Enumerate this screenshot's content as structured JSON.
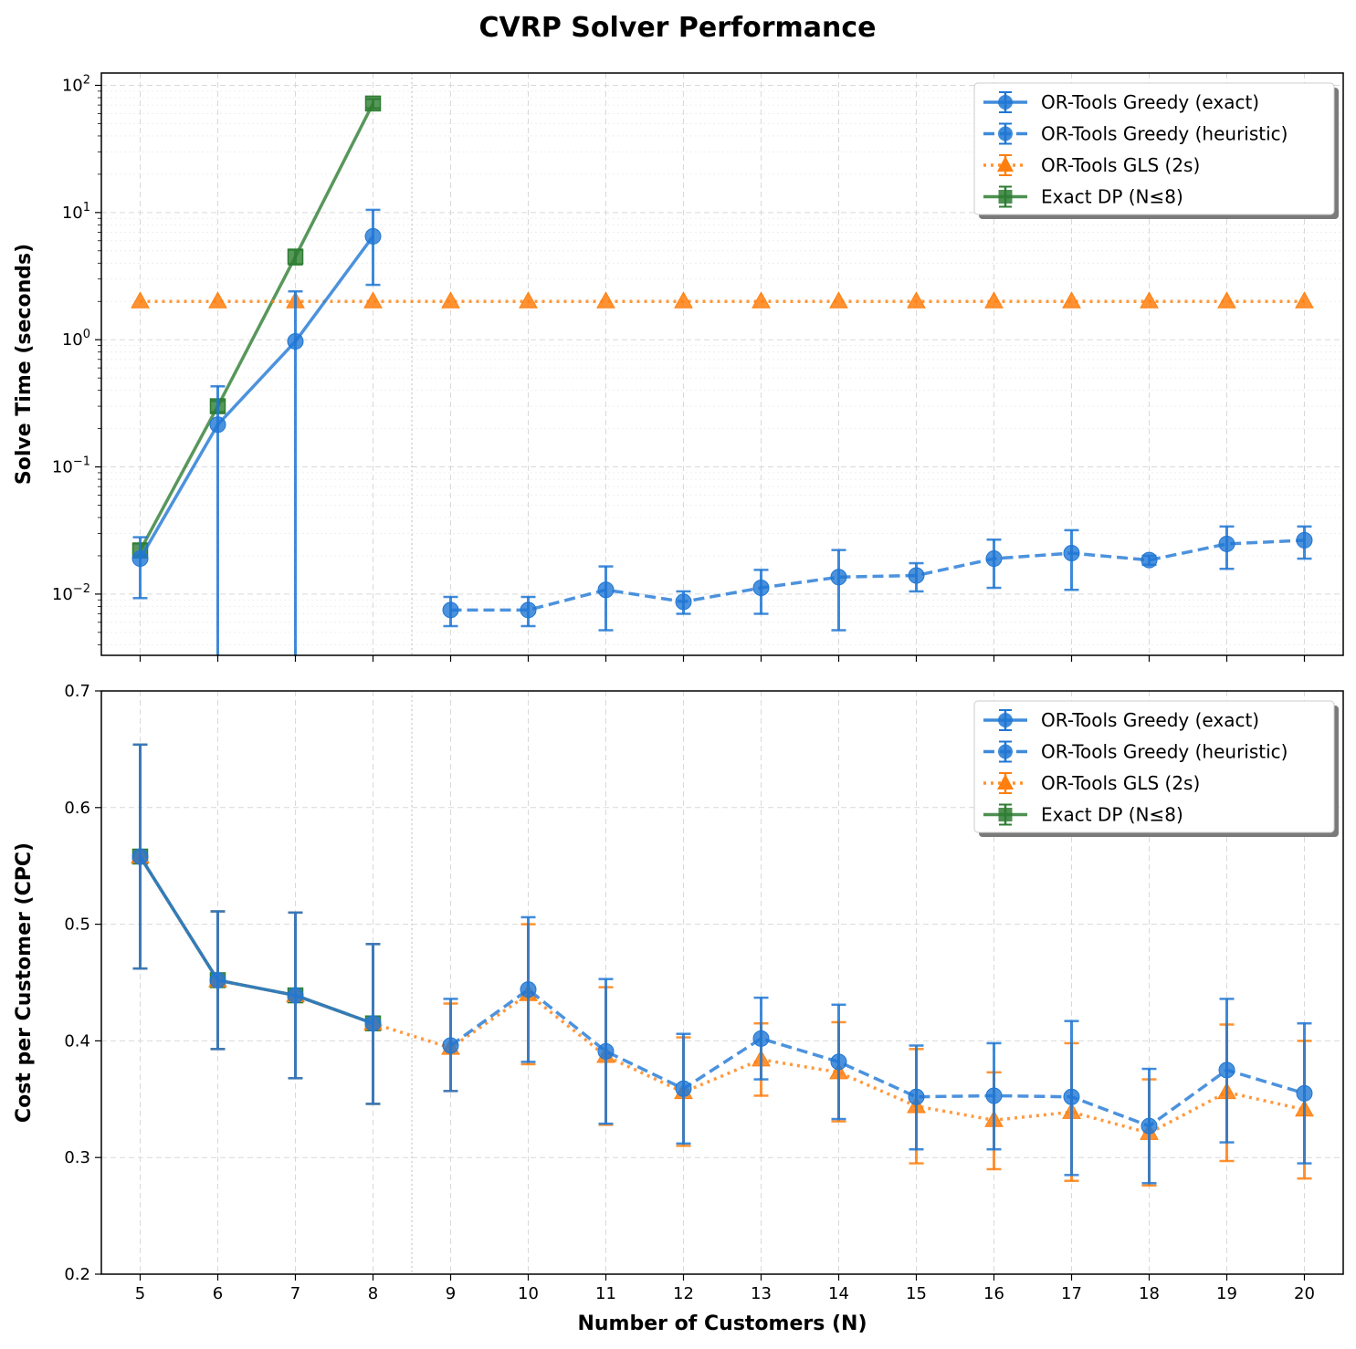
{
  "figure_title": "CVRP Solver Performance",
  "colors": {
    "greedy": "#1f77d4",
    "gls": "#ff7f0e",
    "dp": "#2e7d32"
  },
  "chart_data": [
    {
      "type": "line",
      "panel": "top",
      "xlabel": "",
      "ylabel": "Solve Time (seconds)",
      "yscale": "log",
      "ylim": [
        0.0033,
        125
      ],
      "yticks": [
        {
          "value": 0.01,
          "base": "10",
          "exp": "−2"
        },
        {
          "value": 0.1,
          "base": "10",
          "exp": "−1"
        },
        {
          "value": 1,
          "base": "10",
          "exp": "0"
        },
        {
          "value": 10,
          "base": "10",
          "exp": "1"
        },
        {
          "value": 100,
          "base": "10",
          "exp": "2"
        }
      ],
      "x": [
        5,
        6,
        7,
        8,
        9,
        10,
        11,
        12,
        13,
        14,
        15,
        16,
        17,
        18,
        19,
        20
      ],
      "grid": true,
      "legend_position": "top-right",
      "series": [
        {
          "name": "OR-Tools Greedy (exact)",
          "color_key": "greedy",
          "marker": "circle",
          "line": "solid",
          "x": [
            5,
            6,
            7,
            8
          ],
          "y": [
            0.019,
            0.215,
            0.97,
            6.5
          ],
          "err_low": [
            0.0093,
            0.0001,
            0.0001,
            2.7
          ],
          "err_high": [
            0.028,
            0.43,
            2.4,
            10.5
          ]
        },
        {
          "name": "OR-Tools Greedy (heuristic)",
          "color_key": "greedy",
          "marker": "circle",
          "line": "dashed",
          "x": [
            9,
            10,
            11,
            12,
            13,
            14,
            15,
            16,
            17,
            18,
            19,
            20
          ],
          "y": [
            0.0075,
            0.0075,
            0.0108,
            0.0087,
            0.0112,
            0.0136,
            0.014,
            0.019,
            0.021,
            0.0185,
            0.0248,
            0.0265
          ],
          "err_low": [
            0.0056,
            0.0056,
            0.0052,
            0.007,
            0.007,
            0.0052,
            0.0105,
            0.0112,
            0.0108,
            0.017,
            0.0158,
            0.019
          ],
          "err_high": [
            0.0095,
            0.0095,
            0.0165,
            0.0105,
            0.0155,
            0.0222,
            0.0175,
            0.0268,
            0.0318,
            0.02,
            0.034,
            0.034
          ]
        },
        {
          "name": "OR-Tools GLS (2s)",
          "color_key": "gls",
          "marker": "triangle",
          "line": "dotted",
          "x": [
            5,
            6,
            7,
            8,
            9,
            10,
            11,
            12,
            13,
            14,
            15,
            16,
            17,
            18,
            19,
            20
          ],
          "y": [
            2,
            2,
            2,
            2,
            2,
            2,
            2,
            2,
            2,
            2,
            2,
            2,
            2,
            2,
            2,
            2
          ]
        },
        {
          "name": "Exact DP (N≤8)",
          "color_key": "dp",
          "marker": "square",
          "line": "solid",
          "x": [
            5,
            6,
            7,
            8
          ],
          "y": [
            0.022,
            0.3,
            4.5,
            72
          ],
          "err_low": [
            0.02,
            0.27,
            3.9,
            66
          ],
          "err_high": [
            0.025,
            0.33,
            5.1,
            78
          ]
        }
      ]
    },
    {
      "type": "line",
      "panel": "bottom",
      "xlabel": "Number of Customers (N)",
      "ylabel": "Cost per Customer (CPC)",
      "yscale": "linear",
      "ylim": [
        0.2,
        0.7
      ],
      "yticks": [
        {
          "value": 0.2,
          "label": "0.2"
        },
        {
          "value": 0.3,
          "label": "0.3"
        },
        {
          "value": 0.4,
          "label": "0.4"
        },
        {
          "value": 0.5,
          "label": "0.5"
        },
        {
          "value": 0.6,
          "label": "0.6"
        },
        {
          "value": 0.7,
          "label": "0.7"
        }
      ],
      "x": [
        5,
        6,
        7,
        8,
        9,
        10,
        11,
        12,
        13,
        14,
        15,
        16,
        17,
        18,
        19,
        20
      ],
      "xtick_labels": [
        "5",
        "6",
        "7",
        "8",
        "9",
        "10",
        "11",
        "12",
        "13",
        "14",
        "15",
        "16",
        "17",
        "18",
        "19",
        "20"
      ],
      "grid": true,
      "legend_position": "top-right",
      "series": [
        {
          "name": "OR-Tools Greedy (exact)",
          "color_key": "greedy",
          "marker": "circle",
          "line": "solid",
          "x": [
            5,
            6,
            7,
            8
          ],
          "y": [
            0.558,
            0.452,
            0.439,
            0.415
          ],
          "err_low": [
            0.462,
            0.393,
            0.368,
            0.346
          ],
          "err_high": [
            0.654,
            0.511,
            0.51,
            0.483
          ]
        },
        {
          "name": "OR-Tools Greedy (heuristic)",
          "color_key": "greedy",
          "marker": "circle",
          "line": "dashed",
          "x": [
            9,
            10,
            11,
            12,
            13,
            14,
            15,
            16,
            17,
            18,
            19,
            20
          ],
          "y": [
            0.396,
            0.444,
            0.391,
            0.359,
            0.402,
            0.382,
            0.352,
            0.353,
            0.352,
            0.327,
            0.375,
            0.355
          ],
          "err_low": [
            0.357,
            0.382,
            0.329,
            0.312,
            0.367,
            0.333,
            0.307,
            0.307,
            0.285,
            0.278,
            0.313,
            0.295
          ],
          "err_high": [
            0.436,
            0.506,
            0.453,
            0.406,
            0.437,
            0.431,
            0.396,
            0.398,
            0.417,
            0.376,
            0.436,
            0.415
          ]
        },
        {
          "name": "OR-Tools GLS (2s)",
          "color_key": "gls",
          "marker": "triangle",
          "line": "dotted",
          "x": [
            5,
            6,
            7,
            8,
            9,
            10,
            11,
            12,
            13,
            14,
            15,
            16,
            17,
            18,
            19,
            20
          ],
          "y": [
            0.558,
            0.452,
            0.439,
            0.415,
            0.394,
            0.44,
            0.387,
            0.356,
            0.384,
            0.373,
            0.344,
            0.332,
            0.339,
            0.321,
            0.356,
            0.341
          ],
          "err_low": [
            0.462,
            0.393,
            0.368,
            0.346,
            0.357,
            0.38,
            0.328,
            0.31,
            0.353,
            0.331,
            0.295,
            0.29,
            0.28,
            0.276,
            0.297,
            0.282
          ],
          "err_high": [
            0.654,
            0.511,
            0.51,
            0.483,
            0.432,
            0.5,
            0.446,
            0.403,
            0.415,
            0.416,
            0.393,
            0.373,
            0.398,
            0.367,
            0.414,
            0.4
          ]
        },
        {
          "name": "Exact DP (N≤8)",
          "color_key": "dp",
          "marker": "square",
          "line": "solid",
          "x": [
            5,
            6,
            7,
            8
          ],
          "y": [
            0.558,
            0.452,
            0.439,
            0.415
          ],
          "err_low": [
            0.462,
            0.393,
            0.368,
            0.346
          ],
          "err_high": [
            0.654,
            0.511,
            0.51,
            0.483
          ]
        }
      ]
    }
  ]
}
